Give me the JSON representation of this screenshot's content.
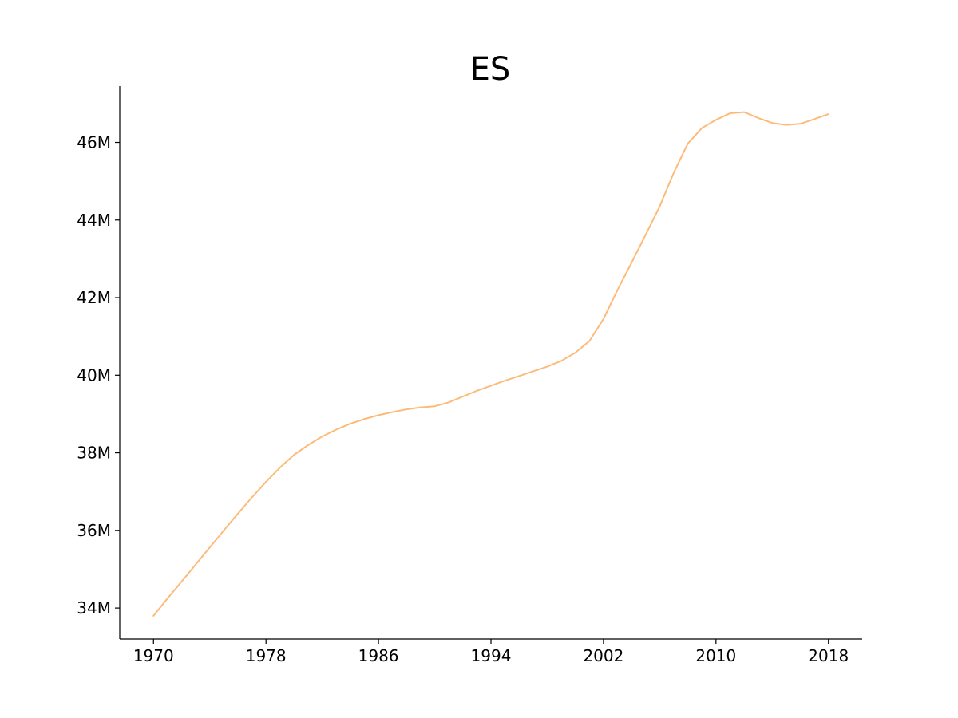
{
  "chart_data": {
    "type": "line",
    "title": "ES",
    "xlabel": "",
    "ylabel": "",
    "xlim": [
      1967.6,
      2020.4
    ],
    "ylim": [
      33.2,
      47.45
    ],
    "x_ticks": [
      1970,
      1978,
      1986,
      1994,
      2002,
      2010,
      2018
    ],
    "x_tick_labels": [
      "1970",
      "1978",
      "1986",
      "1994",
      "2002",
      "2010",
      "2018"
    ],
    "y_ticks": [
      34,
      36,
      38,
      40,
      42,
      44,
      46
    ],
    "y_tick_labels": [
      "34M",
      "36M",
      "38M",
      "40M",
      "42M",
      "44M",
      "46M"
    ],
    "y_unit": "millions",
    "grid": false,
    "series": [
      {
        "name": "ES",
        "color": "#fdbb7a",
        "x": [
          1970,
          1971,
          1972,
          1973,
          1974,
          1975,
          1976,
          1977,
          1978,
          1979,
          1980,
          1981,
          1982,
          1983,
          1984,
          1985,
          1986,
          1987,
          1988,
          1989,
          1990,
          1991,
          1992,
          1993,
          1994,
          1995,
          1996,
          1997,
          1998,
          1999,
          2000,
          2001,
          2002,
          2003,
          2004,
          2005,
          2006,
          2007,
          2008,
          2009,
          2010,
          2011,
          2012,
          2013,
          2014,
          2015,
          2016,
          2017,
          2018
        ],
        "values": [
          33.8,
          34.25,
          34.68,
          35.12,
          35.56,
          36.0,
          36.43,
          36.85,
          37.25,
          37.62,
          37.95,
          38.2,
          38.42,
          38.6,
          38.75,
          38.87,
          38.97,
          39.05,
          39.12,
          39.17,
          39.2,
          39.3,
          39.45,
          39.6,
          39.73,
          39.86,
          39.98,
          40.1,
          40.22,
          40.37,
          40.58,
          40.88,
          41.45,
          42.2,
          42.9,
          43.62,
          44.35,
          45.22,
          45.97,
          46.37,
          46.58,
          46.75,
          46.78,
          46.63,
          46.5,
          46.45,
          46.48,
          46.6,
          46.73
        ]
      }
    ]
  }
}
